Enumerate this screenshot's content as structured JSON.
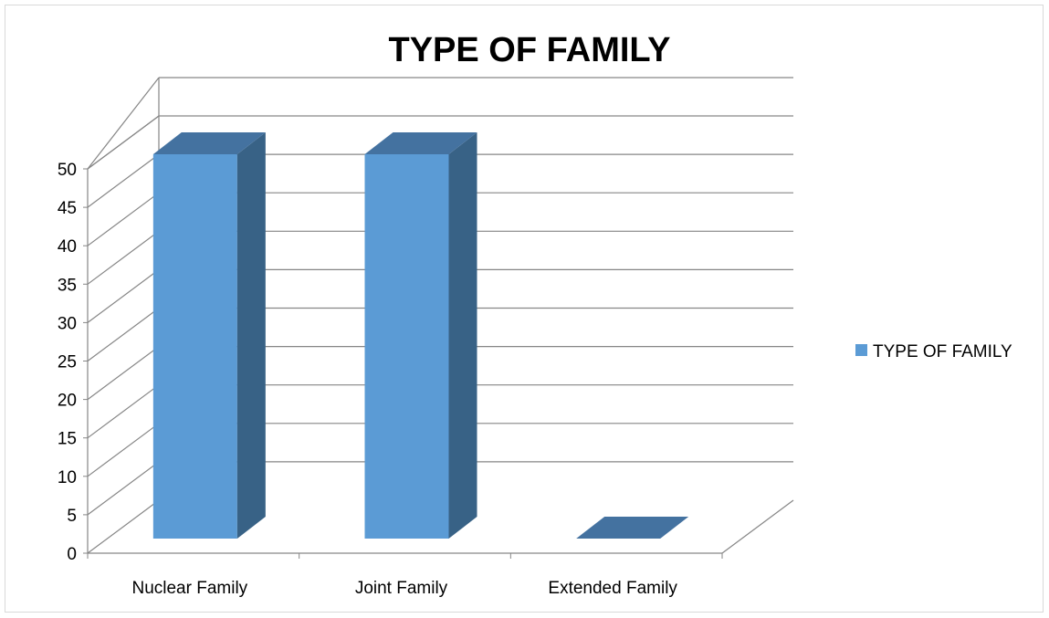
{
  "chart_data": {
    "type": "bar",
    "title": "TYPE OF FAMILY",
    "categories": [
      "Nuclear Family",
      "Joint Family",
      "Extended Family"
    ],
    "series": [
      {
        "name": "TYPE OF FAMILY",
        "values": [
          50,
          50,
          0
        ]
      }
    ],
    "yticks": [
      "0",
      "5",
      "10",
      "15",
      "20",
      "25",
      "30",
      "35",
      "40",
      "45",
      "50"
    ],
    "ylim": [
      0,
      50
    ],
    "grid": true,
    "legend": "right",
    "colors": {
      "front": "#5b9bd5",
      "side": "#386286",
      "top": "#4472a0",
      "grid": "#868686"
    }
  }
}
